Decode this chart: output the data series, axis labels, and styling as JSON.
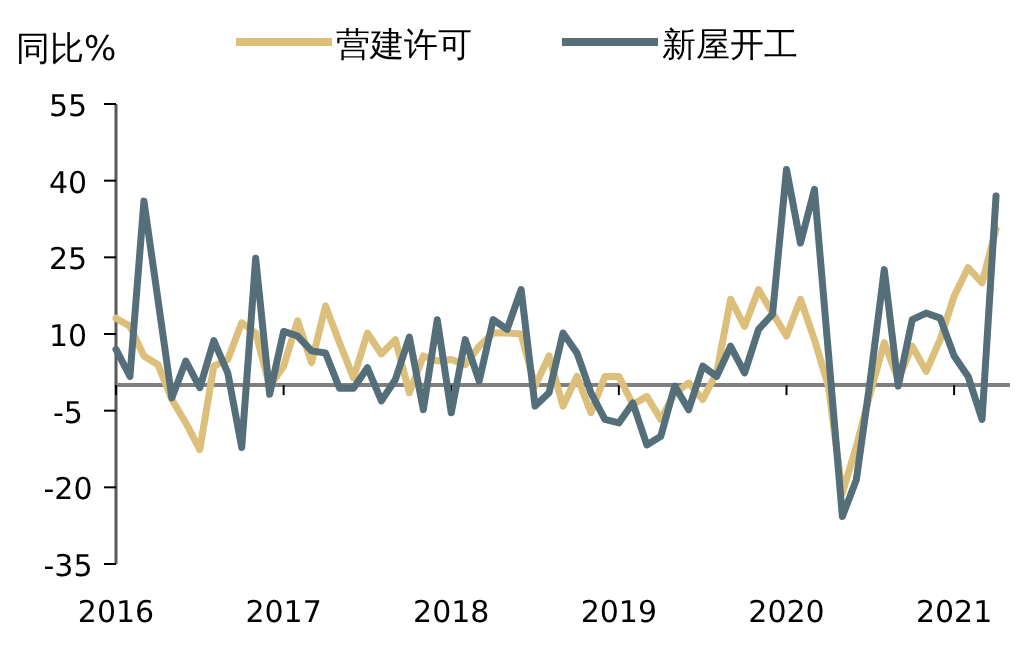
{
  "chart_data": {
    "type": "line",
    "ylabel": "同比%",
    "legend": "top",
    "grid": false,
    "line_style": "solid",
    "x": [
      "2016-01",
      "2016-02",
      "2016-03",
      "2016-04",
      "2016-05",
      "2016-06",
      "2016-07",
      "2016-08",
      "2016-09",
      "2016-10",
      "2016-11",
      "2016-12",
      "2017-01",
      "2017-02",
      "2017-03",
      "2017-04",
      "2017-05",
      "2017-06",
      "2017-07",
      "2017-08",
      "2017-09",
      "2017-10",
      "2017-11",
      "2017-12",
      "2018-01",
      "2018-02",
      "2018-03",
      "2018-04",
      "2018-05",
      "2018-06",
      "2018-07",
      "2018-08",
      "2018-09",
      "2018-10",
      "2018-11",
      "2018-12",
      "2019-01",
      "2019-02",
      "2019-03",
      "2019-04",
      "2019-05",
      "2019-06",
      "2019-07",
      "2019-08",
      "2019-09",
      "2019-10",
      "2019-11",
      "2019-12",
      "2020-01",
      "2020-02",
      "2020-03",
      "2020-04",
      "2020-05",
      "2020-06",
      "2020-07",
      "2020-08",
      "2020-09",
      "2020-10",
      "2020-11",
      "2020-12",
      "2021-01",
      "2021-02",
      "2021-03",
      "2021-04"
    ],
    "xlim": [
      "2016-01",
      "2021-05"
    ],
    "xticks": [
      {
        "value": "2016-01",
        "label": "2016"
      },
      {
        "value": "2017-01",
        "label": "2017"
      },
      {
        "value": "2018-01",
        "label": "2018"
      },
      {
        "value": "2019-01",
        "label": "2019"
      },
      {
        "value": "2020-01",
        "label": "2020"
      },
      {
        "value": "2021-01",
        "label": "2021"
      }
    ],
    "ylim": [
      -35,
      55
    ],
    "yticks": [
      -35,
      -20,
      -5,
      10,
      25,
      40,
      55
    ],
    "ref_lines": [
      {
        "axis": "y",
        "value": 0,
        "color": "#7f7f7f"
      }
    ],
    "series": [
      {
        "name": "营建许可",
        "color": "#dcbf7a",
        "values": [
          13.1,
          11.5,
          5.7,
          4.0,
          -2.8,
          -7.4,
          -12.6,
          3.7,
          5.0,
          12.2,
          10.2,
          -0.2,
          3.7,
          12.6,
          4.4,
          15.5,
          8.3,
          1.4,
          10.2,
          6.1,
          8.9,
          -1.5,
          5.7,
          4.7,
          5.0,
          4.0,
          7.6,
          10.2,
          10.2,
          10.0,
          -0.2,
          5.7,
          -4.1,
          1.7,
          -5.4,
          1.7,
          1.7,
          -3.8,
          -2.2,
          -6.7,
          -1.5,
          0.4,
          -2.8,
          2.4,
          16.8,
          11.5,
          18.7,
          14.1,
          9.6,
          16.8,
          8.9,
          -0.2,
          -21.1,
          -12.0,
          -1.5,
          8.3,
          1.1,
          7.6,
          2.7,
          8.9,
          17.4,
          23.0,
          20.0,
          30.5
        ]
      },
      {
        "name": "新屋开工",
        "color": "#546e7a",
        "values": [
          7.0,
          1.7,
          36.0,
          16.8,
          -2.5,
          4.7,
          -0.5,
          8.7,
          2.4,
          -12.2,
          24.8,
          -1.8,
          10.5,
          9.6,
          6.7,
          6.3,
          -0.6,
          -0.6,
          3.4,
          -3.1,
          1.1,
          9.4,
          -4.8,
          12.8,
          -5.4,
          8.9,
          0.8,
          12.8,
          10.9,
          18.7,
          -4.1,
          -1.5,
          10.2,
          6.3,
          -1.5,
          -6.7,
          -7.4,
          -3.5,
          -11.7,
          -10.0,
          -0.2,
          -4.8,
          3.7,
          1.7,
          7.6,
          2.4,
          10.9,
          13.9,
          42.2,
          27.8,
          38.3,
          6.3,
          -25.7,
          -18.5,
          1.1,
          22.6,
          -0.2,
          12.8,
          14.1,
          13.1,
          5.7,
          1.7,
          -6.7,
          37.0
        ]
      }
    ]
  }
}
